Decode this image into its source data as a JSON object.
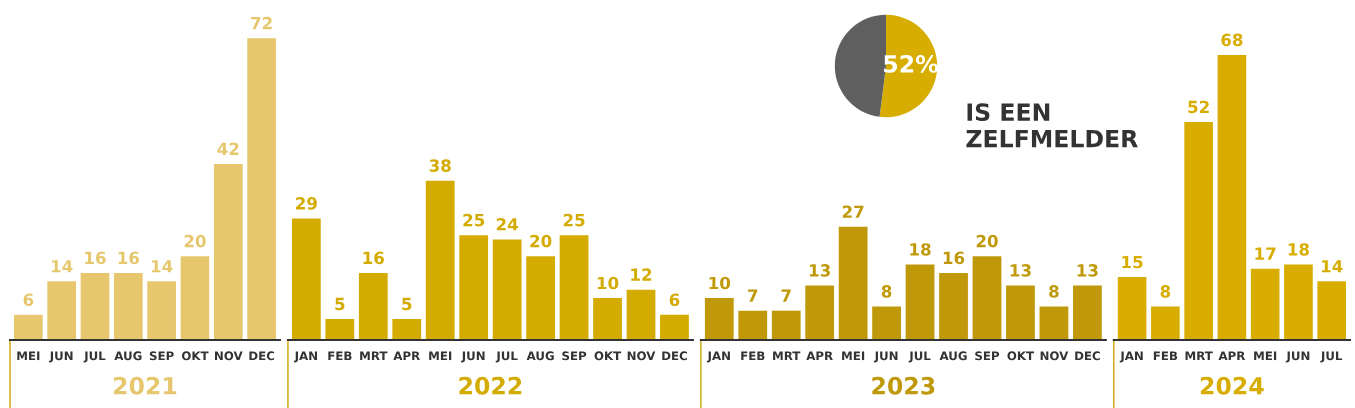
{
  "chart_data": [
    {
      "type": "bar",
      "xlabel": "2021",
      "categories": [
        "MEI",
        "JUN",
        "JUL",
        "AUG",
        "SEP",
        "OKT",
        "NOV",
        "DEC"
      ],
      "values": [
        6,
        14,
        16,
        16,
        14,
        20,
        42,
        72
      ],
      "color": "#e6c76e",
      "data_labels": true
    },
    {
      "type": "bar",
      "xlabel": "2022",
      "categories": [
        "JAN",
        "FEB",
        "MRT",
        "APR",
        "MEI",
        "JUN",
        "JUL",
        "AUG",
        "SEP",
        "OKT",
        "NOV",
        "DEC"
      ],
      "values": [
        29,
        5,
        16,
        5,
        38,
        25,
        24,
        20,
        25,
        10,
        12,
        6
      ],
      "color": "#d4ab00",
      "data_labels": true
    },
    {
      "type": "bar",
      "xlabel": "2023",
      "categories": [
        "JAN",
        "FEB",
        "MRT",
        "APR",
        "MEI",
        "JUN",
        "JUL",
        "AUG",
        "SEP",
        "OKT",
        "NOV",
        "DEC"
      ],
      "values": [
        10,
        7,
        7,
        13,
        27,
        8,
        18,
        16,
        20,
        13,
        8,
        13
      ],
      "color": "#bf990a",
      "data_labels": true
    },
    {
      "type": "bar",
      "xlabel": "2024",
      "categories": [
        "JAN",
        "FEB",
        "MRT",
        "APR",
        "MEI",
        "JUN",
        "JUL"
      ],
      "values": [
        15,
        8,
        52,
        68,
        17,
        18,
        14
      ],
      "color": "#d8ad00",
      "data_labels": true
    },
    {
      "type": "pie",
      "title": "IS EEN\nZELFMELDER",
      "categories": [
        null,
        null
      ],
      "values": [
        52,
        48
      ],
      "colors": [
        "#d6ad00",
        "#5f5f5f"
      ],
      "value_labels": [
        "52%",
        null
      ]
    }
  ]
}
